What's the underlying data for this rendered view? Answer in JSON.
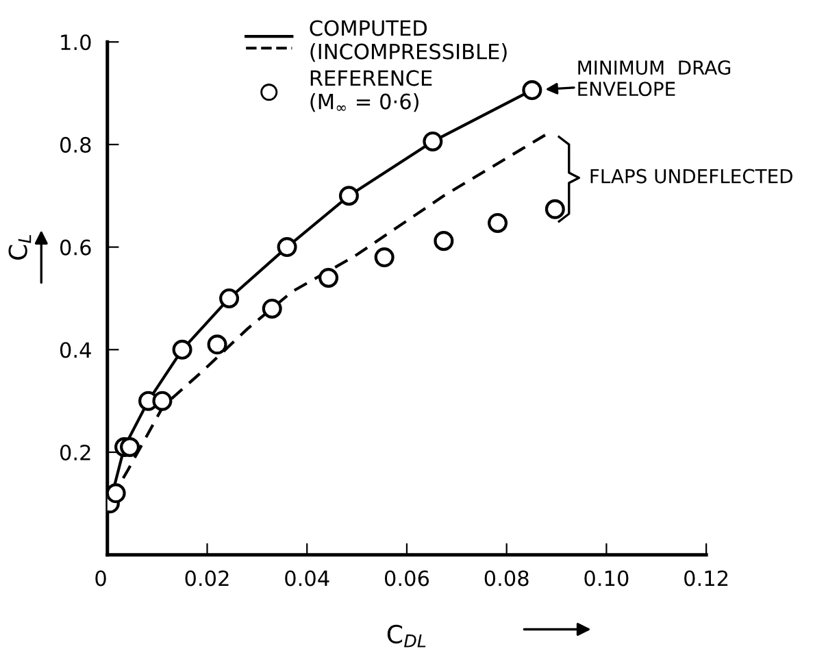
{
  "chart_data": {
    "type": "line",
    "xlabel": "C$_{DL}$",
    "ylabel": "C$_{L}$",
    "xlim": [
      0,
      0.12
    ],
    "ylim": [
      0,
      1.0
    ],
    "xticks": [
      0,
      0.02,
      0.04,
      0.06,
      0.08,
      {
        "value": 0.1,
        "label": "0.10"
      },
      0.12
    ],
    "yticks": [
      0.2,
      0.4,
      0.6,
      0.8,
      {
        "value": 1.0,
        "label": "1.0"
      }
    ],
    "grid": false,
    "legend": "top left",
    "series": [
      {
        "name": "COMPUTED (INCOMPRESSIBLE)",
        "line_style": "solid",
        "marker": "none",
        "color": "#000000",
        "x": [
          0.0005,
          0.0034,
          0.0082,
          0.015,
          0.0244,
          0.036,
          0.0484,
          0.0652,
          0.0851
        ],
        "values": [
          0.1,
          0.21,
          0.3,
          0.4,
          0.5,
          0.6,
          0.7,
          0.806,
          0.906
        ]
      },
      {
        "line_style": "dashed",
        "marker": "none",
        "color": "#000000",
        "x": [
          0.0008,
          0.0041,
          0.0112,
          0.0193,
          0.028,
          0.037,
          0.0495,
          0.0674,
          0.0885
        ],
        "values": [
          0.11,
          0.165,
          0.29,
          0.36,
          0.44,
          0.513,
          0.582,
          0.7,
          0.823
        ]
      },
      {
        "name": "REFERENCE (M$_{∞}$ = 0·6)",
        "type": "scatter",
        "marker": "circle",
        "color": "#000000",
        "x": [
          0.0005,
          0.0017,
          0.0034,
          0.0045,
          0.0082,
          0.011,
          0.015,
          0.022,
          0.0244,
          0.033,
          0.036,
          0.0443,
          0.0484,
          0.0555,
          0.0652,
          0.0674,
          0.0782,
          0.0851,
          0.0897
        ],
        "values": [
          0.1,
          0.12,
          0.21,
          0.21,
          0.3,
          0.3,
          0.4,
          0.41,
          0.5,
          0.48,
          0.6,
          0.54,
          0.7,
          0.58,
          0.806,
          0.612,
          0.647,
          0.906,
          0.674
        ]
      }
    ],
    "annotations": [
      {
        "text": "MINIMUM  DRAG\nENVELOPE",
        "x": 0.0851,
        "y": 0.906
      },
      "FLAPS UNDEFLECTED"
    ]
  }
}
